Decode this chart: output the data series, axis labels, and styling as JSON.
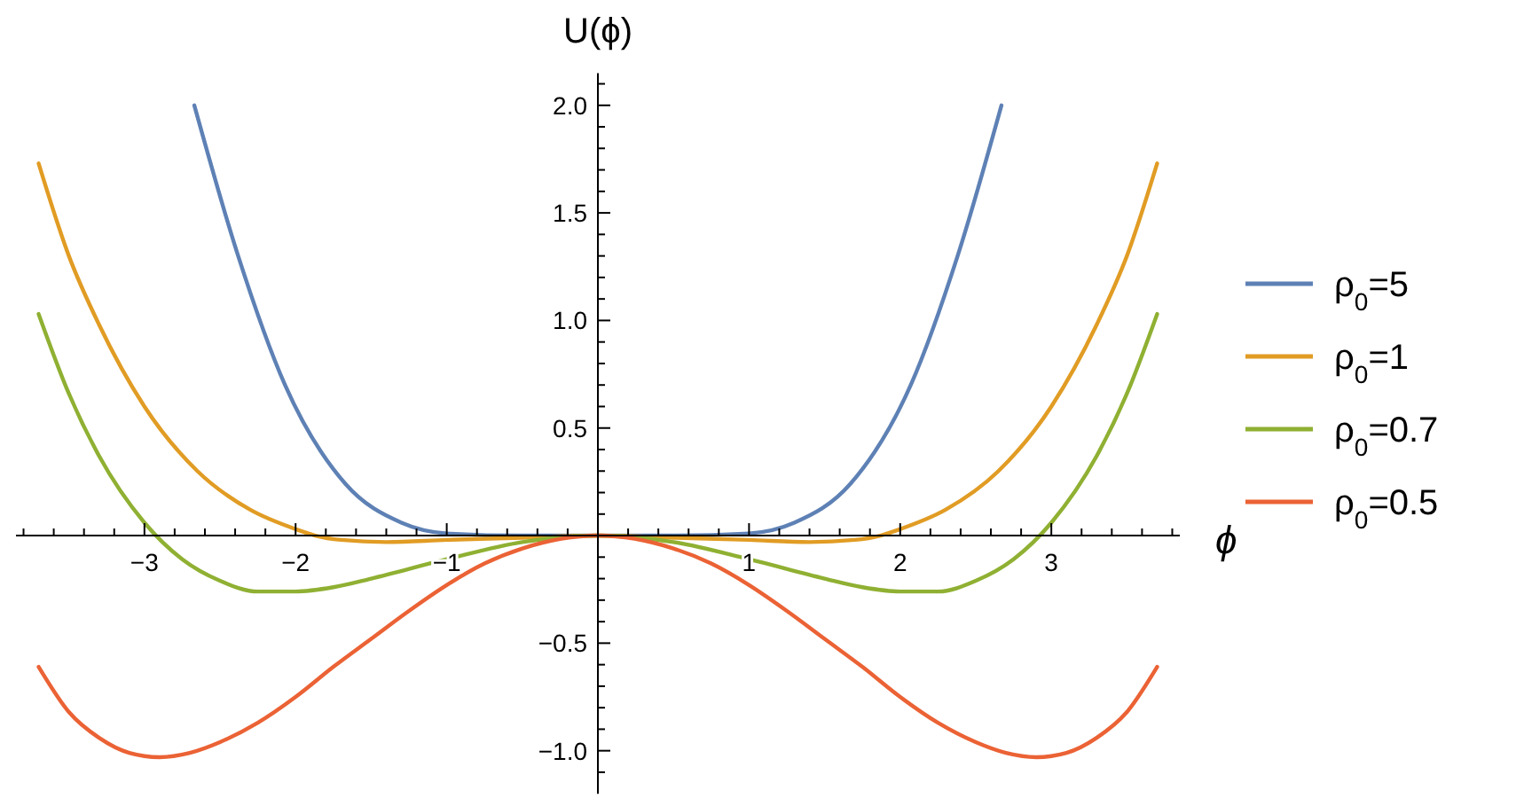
{
  "chart_data": {
    "type": "line",
    "xlabel": "ϕ",
    "ylabel": "U(ϕ)",
    "xlim": [
      -3.85,
      3.85
    ],
    "ylim": [
      -1.2,
      2.15
    ],
    "xticks": [
      {
        "value": -3.8,
        "label": null
      },
      {
        "value": -3.6,
        "label": null
      },
      {
        "value": -3.4,
        "label": null
      },
      {
        "value": -3.2,
        "label": null
      },
      {
        "value": -3,
        "label": "−3"
      },
      {
        "value": -2.8,
        "label": null
      },
      {
        "value": -2.6,
        "label": null
      },
      {
        "value": -2.4,
        "label": null
      },
      {
        "value": -2.2,
        "label": null
      },
      {
        "value": -2,
        "label": "−2"
      },
      {
        "value": -1.8,
        "label": null
      },
      {
        "value": -1.6,
        "label": null
      },
      {
        "value": -1.4,
        "label": null
      },
      {
        "value": -1.2,
        "label": null
      },
      {
        "value": -1,
        "label": "−1"
      },
      {
        "value": -0.8,
        "label": null
      },
      {
        "value": -0.6,
        "label": null
      },
      {
        "value": -0.4,
        "label": null
      },
      {
        "value": -0.2,
        "label": null
      },
      {
        "value": 0.2,
        "label": null
      },
      {
        "value": 0.4,
        "label": null
      },
      {
        "value": 0.6,
        "label": null
      },
      {
        "value": 0.8,
        "label": null
      },
      1,
      {
        "value": 1.2,
        "label": null
      },
      {
        "value": 1.4,
        "label": null
      },
      {
        "value": 1.6,
        "label": null
      },
      {
        "value": 1.8,
        "label": null
      },
      2,
      {
        "value": 2.2,
        "label": null
      },
      {
        "value": 2.4,
        "label": null
      },
      {
        "value": 2.6,
        "label": null
      },
      {
        "value": 2.8,
        "label": null
      },
      3,
      {
        "value": 3.2,
        "label": null
      },
      {
        "value": 3.4,
        "label": null
      },
      {
        "value": 3.6,
        "label": null
      },
      {
        "value": 3.8,
        "label": null
      }
    ],
    "yticks": [
      {
        "value": -1.1,
        "label": null
      },
      {
        "value": -1.0,
        "label": "−1.0"
      },
      {
        "value": -0.9,
        "label": null
      },
      {
        "value": -0.8,
        "label": null
      },
      {
        "value": -0.7,
        "label": null
      },
      {
        "value": -0.6,
        "label": null
      },
      {
        "value": -0.5,
        "label": "−0.5"
      },
      {
        "value": -0.4,
        "label": null
      },
      {
        "value": -0.3,
        "label": null
      },
      {
        "value": -0.2,
        "label": null
      },
      {
        "value": -0.1,
        "label": null
      },
      {
        "value": 0.1,
        "label": null
      },
      {
        "value": 0.2,
        "label": null
      },
      {
        "value": 0.3,
        "label": null
      },
      {
        "value": 0.4,
        "label": null
      },
      0.5,
      {
        "value": 0.6,
        "label": null
      },
      {
        "value": 0.7,
        "label": null
      },
      {
        "value": 0.8,
        "label": null
      },
      {
        "value": 0.9,
        "label": null
      },
      {
        "value": 1.0,
        "label": "1.0"
      },
      {
        "value": 1.1,
        "label": null
      },
      {
        "value": 1.2,
        "label": null
      },
      {
        "value": 1.3,
        "label": null
      },
      {
        "value": 1.4,
        "label": null
      },
      1.5,
      {
        "value": 1.6,
        "label": null
      },
      {
        "value": 1.7,
        "label": null
      },
      {
        "value": 1.8,
        "label": null
      },
      {
        "value": 1.9,
        "label": null
      },
      {
        "value": 2.0,
        "label": "2.0"
      },
      {
        "value": 2.1,
        "label": null
      }
    ],
    "grid": false,
    "legend": "right",
    "marker": "none",
    "line_style": "solid",
    "series": [
      {
        "name": "ρ$_{0}$=5",
        "color": "#5e81b5",
        "x": [
          -2.67,
          -2.38,
          -2.07,
          -1.67,
          -1.3,
          -1,
          -0.5,
          0,
          0.5,
          1,
          1.3,
          1.67,
          2.07,
          2.38,
          2.67
        ],
        "values": [
          2.0,
          1.3,
          0.7,
          0.24,
          0.06,
          0.01,
          0,
          0,
          0,
          0.01,
          0.06,
          0.24,
          0.7,
          1.3,
          2.0
        ]
      },
      {
        "name": "ρ$_{0}$=1",
        "color": "#e19c24",
        "x": [
          -3.7,
          -3.5,
          -3.3,
          -3.0,
          -2.65,
          -2.3,
          -2.0,
          -1.87,
          -1.7,
          -1.4,
          -1,
          -0.5,
          0,
          0.5,
          1,
          1.4,
          1.7,
          1.87,
          2.0,
          2.3,
          2.65,
          3.0,
          3.3,
          3.5,
          3.7
        ],
        "values": [
          1.73,
          1.3,
          0.98,
          0.6,
          0.3,
          0.12,
          0.03,
          0,
          -0.02,
          -0.03,
          -0.02,
          -0.01,
          0,
          -0.01,
          -0.02,
          -0.03,
          -0.02,
          0,
          0.03,
          0.12,
          0.3,
          0.6,
          0.98,
          1.3,
          1.73
        ]
      },
      {
        "name": "ρ$_{0}$=0.7",
        "color": "#8fb032",
        "x": [
          -3.7,
          -3.5,
          -3.3,
          -3.0,
          -2.75,
          -2.5,
          -2.25,
          -2.0,
          -1.75,
          -1.5,
          -1,
          -0.5,
          0,
          0.5,
          1,
          1.5,
          1.75,
          2.0,
          2.25,
          2.5,
          2.75,
          3.0,
          3.3,
          3.5,
          3.7
        ],
        "values": [
          1.03,
          0.66,
          0.37,
          0.06,
          -0.11,
          -0.21,
          -0.26,
          -0.26,
          -0.24,
          -0.2,
          -0.11,
          -0.03,
          0,
          -0.03,
          -0.11,
          -0.2,
          -0.24,
          -0.26,
          -0.26,
          -0.21,
          -0.11,
          0.06,
          0.37,
          0.66,
          1.03
        ]
      },
      {
        "name": "ρ$_{0}$=0.5",
        "color": "#eb6235",
        "x": [
          -3.7,
          -3.5,
          -3.3,
          -3.1,
          -2.9,
          -2.7,
          -2.5,
          -2.25,
          -2.0,
          -1.75,
          -1.5,
          -1.25,
          -1,
          -0.75,
          -0.5,
          0,
          0.5,
          0.75,
          1,
          1.25,
          1.5,
          1.75,
          2.0,
          2.25,
          2.5,
          2.7,
          2.9,
          3.1,
          3.3,
          3.5,
          3.7
        ],
        "values": [
          -0.61,
          -0.82,
          -0.94,
          -1.01,
          -1.03,
          -1.01,
          -0.96,
          -0.87,
          -0.75,
          -0.61,
          -0.48,
          -0.35,
          -0.23,
          -0.13,
          -0.06,
          0,
          -0.06,
          -0.13,
          -0.23,
          -0.35,
          -0.48,
          -0.61,
          -0.75,
          -0.87,
          -0.96,
          -1.01,
          -1.03,
          -1.01,
          -0.94,
          -0.82,
          -0.61
        ]
      }
    ]
  }
}
